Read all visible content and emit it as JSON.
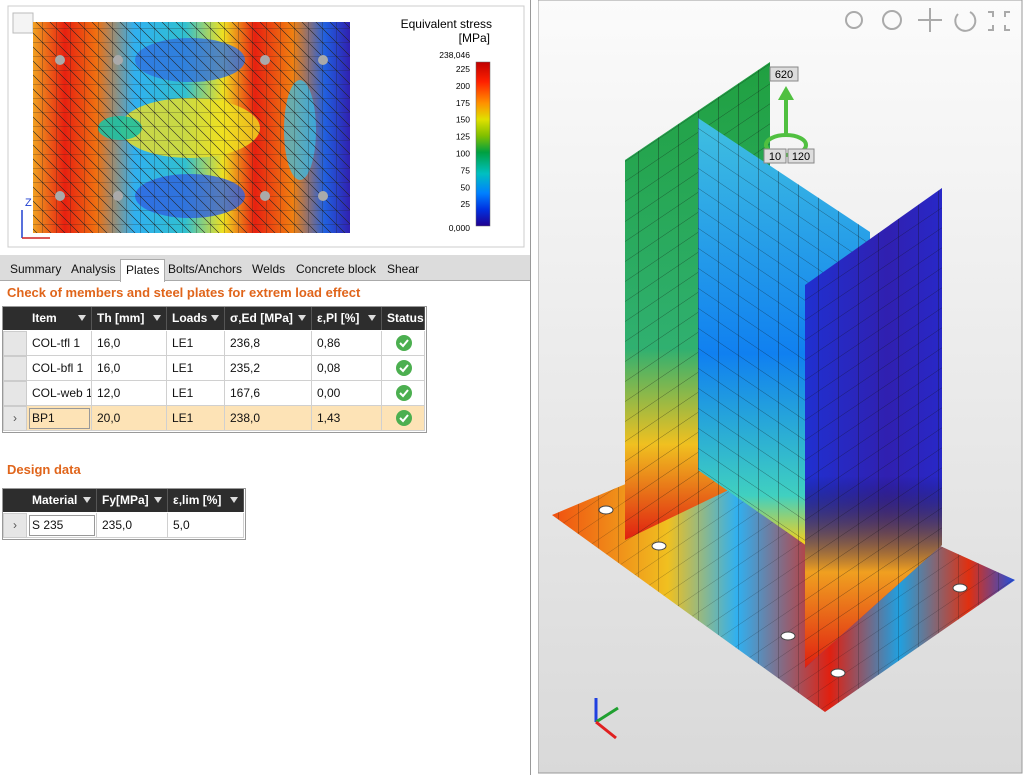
{
  "plot": {
    "title": "Equivalent stress",
    "unit": "[MPa]",
    "axis_label": "Z",
    "scale_labels": [
      "238,046",
      "225",
      "200",
      "175",
      "150",
      "125",
      "100",
      "75",
      "50",
      "25",
      "0,000"
    ]
  },
  "tabs": [
    {
      "label": "Summary"
    },
    {
      "label": "Analysis"
    },
    {
      "label": "Plates",
      "active": true
    },
    {
      "label": "Bolts/Anchors"
    },
    {
      "label": "Welds"
    },
    {
      "label": "Concrete block"
    },
    {
      "label": "Shear"
    }
  ],
  "check": {
    "title": "Check of members and steel plates for extrem load effect",
    "columns": [
      "Item",
      "Th [mm]",
      "Loads",
      "σ,Ed [MPa]",
      "ε,Pl [%]",
      "Status"
    ],
    "rows": [
      [
        "COL-tfl 1",
        "16,0",
        "LE1",
        "236,8",
        "0,86"
      ],
      [
        "COL-bfl 1",
        "16,0",
        "LE1",
        "235,2",
        "0,08"
      ],
      [
        "COL-web 1",
        "12,0",
        "LE1",
        "167,6",
        "0,00"
      ],
      [
        "BP1",
        "20,0",
        "LE1",
        "238,0",
        "1,43"
      ]
    ],
    "selected_row": 3
  },
  "design": {
    "title": "Design data",
    "columns": [
      "Material",
      "Fy[MPa]",
      "ε,lim [%]"
    ],
    "rows": [
      [
        "S 235",
        "235,0",
        "5,0"
      ]
    ],
    "selected_row": 0
  },
  "view": {
    "labels": [
      "620",
      "10",
      "120"
    ]
  }
}
